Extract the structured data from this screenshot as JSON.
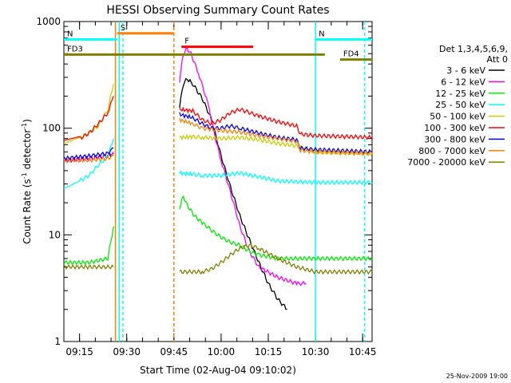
{
  "chart_data": {
    "type": "line",
    "title": "HESSI Observing Summary Count Rates",
    "xlabel": "Start Time (02-Aug-04 09:10:02)",
    "ylabel_main": "Count Rate (s",
    "ylabel_sup1": "-1",
    "ylabel_mid": " detector",
    "ylabel_sup2": "-1",
    "ylabel_end": ")",
    "footer": "25-Nov-2009 19:00",
    "y_scale": "log",
    "ylim": [
      1,
      1000
    ],
    "xlim": [
      9.167,
      10.8
    ],
    "x_ticks": [
      {
        "label": "09:15",
        "x": 9.25
      },
      {
        "label": "09:30",
        "x": 9.5
      },
      {
        "label": "09:45",
        "x": 9.75
      },
      {
        "label": "10:00",
        "x": 10.0
      },
      {
        "label": "10:15",
        "x": 10.25
      },
      {
        "label": "10:30",
        "x": 10.5
      },
      {
        "label": "10:45",
        "x": 10.75
      }
    ],
    "y_ticks": [
      {
        "label": "1",
        "v": 1
      },
      {
        "label": "10",
        "v": 10
      },
      {
        "label": "100",
        "v": 100
      },
      {
        "label": "1000",
        "v": 1000
      }
    ],
    "legend": {
      "title1": "Det 1,3,4,5,6,9,",
      "title2": "Att 0",
      "items": [
        {
          "label": "3 - 6 keV",
          "color": "#000000"
        },
        {
          "label": "6 - 12 keV",
          "color": "#ff00ff"
        },
        {
          "label": "12 - 25 keV",
          "color": "#00ee00"
        },
        {
          "label": "25 - 50 keV",
          "color": "#00ffff"
        },
        {
          "label": "50 - 100 keV",
          "color": "#cccc00"
        },
        {
          "label": "100 - 300 keV",
          "color": "#ff0000"
        },
        {
          "label": "300 - 800 keV",
          "color": "#0000ff"
        },
        {
          "label": "800 - 7000 keV",
          "color": "#ff8000"
        },
        {
          "label": "7000 - 20000 keV",
          "color": "#808000"
        }
      ]
    },
    "flags": [
      {
        "label": "S",
        "color": "#ff8000",
        "x0": 9.45,
        "x1": 9.75,
        "level": 775
      },
      {
        "label": "N",
        "color": "#00ffff",
        "x0": 9.167,
        "x1": 9.45,
        "level": 680
      },
      {
        "label": "N",
        "color": "#00ffff",
        "x0": 10.5,
        "x1": 10.8,
        "level": 680
      },
      {
        "label": "F",
        "color": "#ff0000",
        "x0": 9.79,
        "x1": 10.17,
        "level": 580
      },
      {
        "label": "FD3",
        "color": "#808000",
        "x0": 9.167,
        "x1": 10.55,
        "level": 490
      },
      {
        "label": "FD4",
        "color": "#808000",
        "x0": 10.63,
        "x1": 10.8,
        "level": 440
      }
    ],
    "vlines": [
      {
        "x": 9.44,
        "color": "#ff8000",
        "dash": false
      },
      {
        "x": 9.46,
        "color": "#00ffff",
        "dash": false
      },
      {
        "x": 9.48,
        "color": "#00ffff",
        "dash": true
      },
      {
        "x": 9.75,
        "color": "#ff8000",
        "dash": true
      },
      {
        "x": 10.5,
        "color": "#00ffff",
        "dash": false
      },
      {
        "x": 10.76,
        "color": "#00ffff",
        "dash": true
      }
    ],
    "series": [
      {
        "name": "3 - 6 keV",
        "color": "#000000",
        "segments": [
          [
            [
              9.167,
              50
            ],
            [
              9.3,
              52
            ],
            [
              9.4,
              55
            ],
            [
              9.43,
              58
            ]
          ],
          [
            [
              9.78,
              160
            ],
            [
              9.8,
              260
            ],
            [
              9.82,
              290
            ],
            [
              9.85,
              260
            ],
            [
              9.9,
              190
            ],
            [
              9.95,
              120
            ],
            [
              10.0,
              55
            ],
            [
              10.05,
              28
            ],
            [
              10.1,
              15
            ],
            [
              10.15,
              9
            ],
            [
              10.2,
              5.5
            ],
            [
              10.25,
              3.5
            ],
            [
              10.3,
              2.5
            ],
            [
              10.35,
              2
            ]
          ]
        ]
      },
      {
        "name": "6 - 12 keV",
        "color": "#ff00ff",
        "segments": [
          [
            [
              9.167,
              50
            ],
            [
              9.3,
              52
            ],
            [
              9.4,
              55
            ],
            [
              9.43,
              60
            ]
          ],
          [
            [
              9.78,
              280
            ],
            [
              9.8,
              500
            ],
            [
              9.82,
              560
            ],
            [
              9.84,
              500
            ],
            [
              9.88,
              330
            ],
            [
              9.93,
              170
            ],
            [
              9.97,
              80
            ],
            [
              10.0,
              50
            ],
            [
              10.05,
              25
            ],
            [
              10.1,
              12
            ],
            [
              10.15,
              7
            ],
            [
              10.2,
              5
            ],
            [
              10.3,
              4
            ],
            [
              10.4,
              3.5
            ],
            [
              10.45,
              3.5
            ]
          ]
        ]
      },
      {
        "name": "12 - 25 keV",
        "color": "#00ee00",
        "segments": [
          [
            [
              9.167,
              5.5
            ],
            [
              9.3,
              5.5
            ],
            [
              9.4,
              6
            ],
            [
              9.43,
              12
            ]
          ],
          [
            [
              9.78,
              18
            ],
            [
              9.8,
              23
            ],
            [
              9.82,
              19
            ],
            [
              9.86,
              15
            ],
            [
              9.9,
              13
            ],
            [
              9.95,
              11
            ],
            [
              10.0,
              9.5
            ],
            [
              10.05,
              8.5
            ],
            [
              10.1,
              8
            ],
            [
              10.15,
              7
            ],
            [
              10.2,
              6.5
            ],
            [
              10.3,
              6
            ],
            [
              10.5,
              6
            ],
            [
              10.8,
              6
            ]
          ]
        ]
      },
      {
        "name": "25 - 50 keV",
        "color": "#00ffff",
        "segments": [
          [
            [
              9.167,
              28
            ],
            [
              9.25,
              32
            ],
            [
              9.3,
              36
            ],
            [
              9.35,
              45
            ],
            [
              9.4,
              55
            ],
            [
              9.43,
              80
            ]
          ],
          [
            [
              9.78,
              38
            ],
            [
              9.85,
              37
            ],
            [
              9.9,
              36
            ],
            [
              10.0,
              36
            ],
            [
              10.1,
              38
            ],
            [
              10.2,
              35
            ],
            [
              10.3,
              32
            ],
            [
              10.5,
              31
            ],
            [
              10.8,
              31
            ]
          ]
        ]
      },
      {
        "name": "50 - 100 keV",
        "color": "#cccc00",
        "segments": [
          [
            [
              9.167,
              72
            ],
            [
              9.25,
              80
            ],
            [
              9.3,
              90
            ],
            [
              9.35,
              105
            ],
            [
              9.4,
              150
            ],
            [
              9.43,
              260
            ]
          ],
          [
            [
              9.78,
              82
            ],
            [
              9.85,
              83
            ],
            [
              9.9,
              82
            ],
            [
              10.0,
              80
            ],
            [
              10.1,
              82
            ],
            [
              10.2,
              78
            ],
            [
              10.3,
              72
            ],
            [
              10.4,
              68
            ],
            [
              10.5,
              60
            ],
            [
              10.8,
              58
            ]
          ]
        ]
      },
      {
        "name": "100 - 300 keV",
        "color": "#ff0000",
        "segments": [
          [
            [
              9.167,
              75
            ],
            [
              9.25,
              80
            ],
            [
              9.3,
              90
            ],
            [
              9.35,
              110
            ],
            [
              9.4,
              140
            ],
            [
              9.43,
              200
            ]
          ],
          [
            [
              9.78,
              150
            ],
            [
              9.85,
              145
            ],
            [
              9.9,
              120
            ],
            [
              9.95,
              110
            ],
            [
              10.0,
              120
            ],
            [
              10.05,
              140
            ],
            [
              10.1,
              150
            ],
            [
              10.15,
              140
            ],
            [
              10.2,
              130
            ],
            [
              10.3,
              115
            ],
            [
              10.4,
              105
            ],
            [
              10.42,
              88
            ],
            [
              10.5,
              85
            ],
            [
              10.8,
              82
            ]
          ]
        ]
      },
      {
        "name": "300 - 800 keV",
        "color": "#0000ff",
        "segments": [
          [
            [
              9.167,
              52
            ],
            [
              9.3,
              55
            ],
            [
              9.4,
              58
            ],
            [
              9.43,
              65
            ]
          ],
          [
            [
              9.78,
              135
            ],
            [
              9.85,
              125
            ],
            [
              9.9,
              110
            ],
            [
              9.95,
              100
            ],
            [
              10.0,
              100
            ],
            [
              10.05,
              105
            ],
            [
              10.1,
              100
            ],
            [
              10.2,
              90
            ],
            [
              10.3,
              82
            ],
            [
              10.4,
              78
            ],
            [
              10.42,
              65
            ],
            [
              10.5,
              63
            ],
            [
              10.8,
              60
            ]
          ]
        ]
      },
      {
        "name": "800 - 7000 keV",
        "color": "#ff8000",
        "segments": [
          [
            [
              9.167,
              50
            ],
            [
              9.3,
              50
            ],
            [
              9.4,
              52
            ],
            [
              9.43,
              55
            ]
          ],
          [
            [
              9.78,
              120
            ],
            [
              9.85,
              110
            ],
            [
              9.9,
              100
            ],
            [
              10.0,
              95
            ],
            [
              10.1,
              92
            ],
            [
              10.2,
              85
            ],
            [
              10.3,
              80
            ],
            [
              10.4,
              75
            ],
            [
              10.42,
              62
            ],
            [
              10.5,
              60
            ],
            [
              10.8,
              58
            ]
          ]
        ]
      },
      {
        "name": "7000 - 20000 keV",
        "color": "#808000",
        "segments": [
          [
            [
              9.167,
              5
            ],
            [
              9.3,
              5
            ],
            [
              9.4,
              5
            ],
            [
              9.43,
              5
            ]
          ],
          [
            [
              9.78,
              4.5
            ],
            [
              9.9,
              4.5
            ],
            [
              9.95,
              4.8
            ],
            [
              10.0,
              5.5
            ],
            [
              10.05,
              6.5
            ],
            [
              10.1,
              7.5
            ],
            [
              10.15,
              8
            ],
            [
              10.2,
              7.5
            ],
            [
              10.3,
              6
            ],
            [
              10.4,
              5
            ],
            [
              10.5,
              4.5
            ],
            [
              10.8,
              4.5
            ]
          ]
        ]
      }
    ]
  }
}
